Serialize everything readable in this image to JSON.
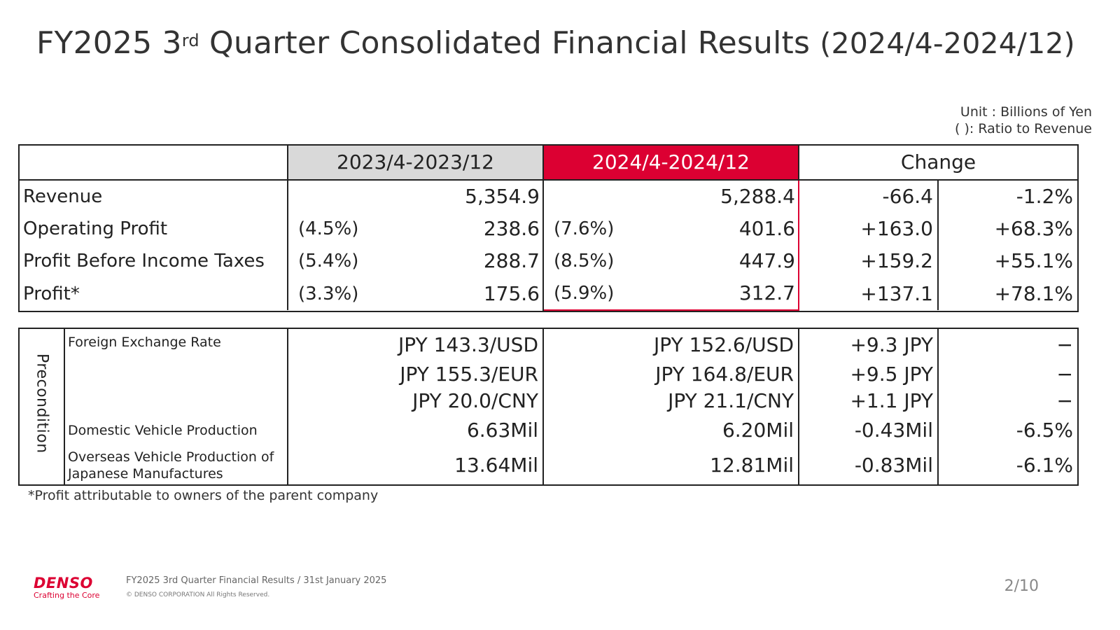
{
  "title": {
    "main": "FY2025 3",
    "sup": "rd",
    "rest": " Quarter Consolidated Financial Results ",
    "range": "(2024/4-2024/12)"
  },
  "unit": {
    "line1": "Unit : Billions of Yen",
    "line2": "( ): Ratio to Revenue"
  },
  "results": {
    "headers": {
      "prev": "2023/4-2023/12",
      "curr": "2024/4-2024/12",
      "change": "Change"
    },
    "rows": [
      {
        "label": "Revenue",
        "prev_ratio": "",
        "prev": "5,354.9",
        "curr_ratio": "",
        "curr": "5,288.4",
        "chg": "-66.4",
        "chg_pct": "-1.2%"
      },
      {
        "label": "Operating Profit",
        "prev_ratio": "(4.5%)",
        "prev": "238.6",
        "curr_ratio": "(7.6%)",
        "curr": "401.6",
        "chg": "+163.0",
        "chg_pct": "+68.3%"
      },
      {
        "label": "Profit Before Income Taxes",
        "prev_ratio": "(5.4%)",
        "prev": "288.7",
        "curr_ratio": "(8.5%)",
        "curr": "447.9",
        "chg": "+159.2",
        "chg_pct": "+55.1%"
      },
      {
        "label": "Profit*",
        "prev_ratio": "(3.3%)",
        "prev": "175.6",
        "curr_ratio": "(5.9%)",
        "curr": "312.7",
        "chg": "+137.1",
        "chg_pct": "+78.1%"
      }
    ]
  },
  "precondition": {
    "side_label": "Precondition",
    "rows": [
      {
        "label": "Foreign Exchange Rate",
        "prev": "JPY 143.3/USD",
        "curr": "JPY 152.6/USD",
        "chg": "+9.3 JPY",
        "chg_pct": "−"
      },
      {
        "label": "",
        "prev": "JPY 155.3/EUR",
        "curr": "JPY 164.8/EUR",
        "chg": "+9.5 JPY",
        "chg_pct": "−"
      },
      {
        "label": "",
        "prev": "JPY 20.0/CNY",
        "curr": "JPY 21.1/CNY",
        "chg": "+1.1 JPY",
        "chg_pct": "−"
      },
      {
        "label": "Domestic Vehicle Production",
        "prev": "6.63Mil",
        "curr": "6.20Mil",
        "chg": "-0.43Mil",
        "chg_pct": "-6.5%"
      },
      {
        "label": "Overseas Vehicle Production of Japanese Manufactures",
        "prev": "13.64Mil",
        "curr": "12.81Mil",
        "chg": "-0.83Mil",
        "chg_pct": "-6.1%"
      }
    ]
  },
  "footnote": "*Profit attributable to owners of the parent company",
  "footer": {
    "brand": "DENSO",
    "tagline": "Crafting the Core",
    "doc_title": "FY2025 3rd Quarter Financial Results / 31st January 2025",
    "copyright": "© DENSO CORPORATION All Rights Reserved.",
    "page": "2/10"
  },
  "colors": {
    "accent": "#dc0032",
    "header_gray": "#d9d9d9",
    "text": "#222222"
  }
}
